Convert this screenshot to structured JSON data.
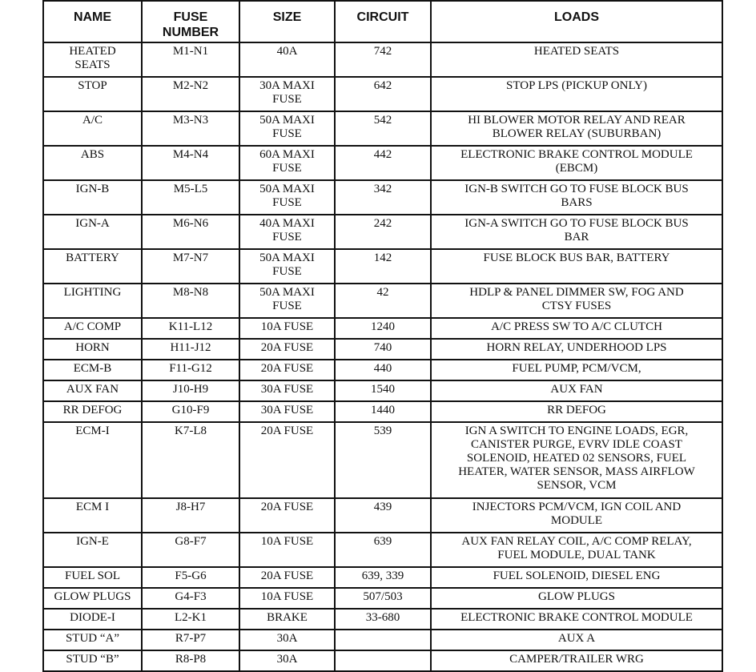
{
  "headers": [
    "NAME",
    "FUSE\nNUMBER",
    "SIZE",
    "CIRCUIT",
    "LOADS"
  ],
  "rows": [
    [
      "HEATED\nSEATS",
      "M1-N1",
      "40A",
      "742",
      "HEATED SEATS"
    ],
    [
      "STOP",
      "M2-N2",
      "30A MAXI\nFUSE",
      "642",
      "STOP LPS (PICKUP ONLY)"
    ],
    [
      "A/C",
      "M3-N3",
      "50A MAXI\nFUSE",
      "542",
      "HI BLOWER MOTOR RELAY AND REAR\nBLOWER RELAY (SUBURBAN)"
    ],
    [
      "ABS",
      "M4-N4",
      "60A MAXI\nFUSE",
      "442",
      "ELECTRONIC BRAKE CONTROL MODULE\n(EBCM)"
    ],
    [
      "IGN-B",
      "M5-L5",
      "50A MAXI\nFUSE",
      "342",
      "IGN-B SWITCH GO TO FUSE BLOCK BUS\nBARS"
    ],
    [
      "IGN-A",
      "M6-N6",
      "40A MAXI\nFUSE",
      "242",
      "IGN-A SWITCH GO TO FUSE BLOCK BUS\nBAR"
    ],
    [
      "BATTERY",
      "M7-N7",
      "50A MAXI\nFUSE",
      "142",
      "FUSE BLOCK BUS BAR, BATTERY"
    ],
    [
      "LIGHTING",
      "M8-N8",
      "50A MAXI\nFUSE",
      "42",
      "HDLP & PANEL DIMMER SW, FOG AND\nCTSY FUSES"
    ],
    [
      "A/C COMP",
      "K11-L12",
      "10A FUSE",
      "1240",
      "A/C PRESS SW TO A/C CLUTCH"
    ],
    [
      "HORN",
      "H11-J12",
      "20A FUSE",
      "740",
      "HORN RELAY, UNDERHOOD LPS"
    ],
    [
      "ECM-B",
      "F11-G12",
      "20A FUSE",
      "440",
      "FUEL PUMP, PCM/VCM,"
    ],
    [
      "AUX FAN",
      "J10-H9",
      "30A FUSE",
      "1540",
      "AUX FAN"
    ],
    [
      "RR DEFOG",
      "G10-F9",
      "30A FUSE",
      "1440",
      "RR DEFOG"
    ],
    [
      "ECM-I",
      "K7-L8",
      "20A FUSE",
      "539",
      "IGN A SWITCH TO ENGINE LOADS, EGR,\nCANISTER PURGE, EVRV IDLE COAST\nSOLENOID, HEATED 02 SENSORS, FUEL\nHEATER, WATER SENSOR, MASS AIRFLOW\nSENSOR, VCM"
    ],
    [
      "ECM I",
      "J8-H7",
      "20A FUSE",
      "439",
      "INJECTORS PCM/VCM, IGN COIL AND\nMODULE"
    ],
    [
      "IGN-E",
      "G8-F7",
      "10A FUSE",
      "639",
      "AUX FAN RELAY COIL, A/C COMP RELAY,\nFUEL MODULE, DUAL TANK"
    ],
    [
      "FUEL SOL",
      "F5-G6",
      "20A FUSE",
      "639, 339",
      "FUEL SOLENOID, DIESEL ENG"
    ],
    [
      "GLOW PLUGS",
      "G4-F3",
      "10A FUSE",
      "507/503",
      "GLOW PLUGS"
    ],
    [
      "DIODE-I",
      "L2-K1",
      "BRAKE",
      "33-680",
      "ELECTRONIC BRAKE CONTROL MODULE"
    ],
    [
      "STUD “A”",
      "R7-P7",
      "30A",
      "",
      "AUX A"
    ],
    [
      "STUD “B”",
      "R8-P8",
      "30A",
      "",
      "CAMPER/TRAILER WRG"
    ]
  ]
}
